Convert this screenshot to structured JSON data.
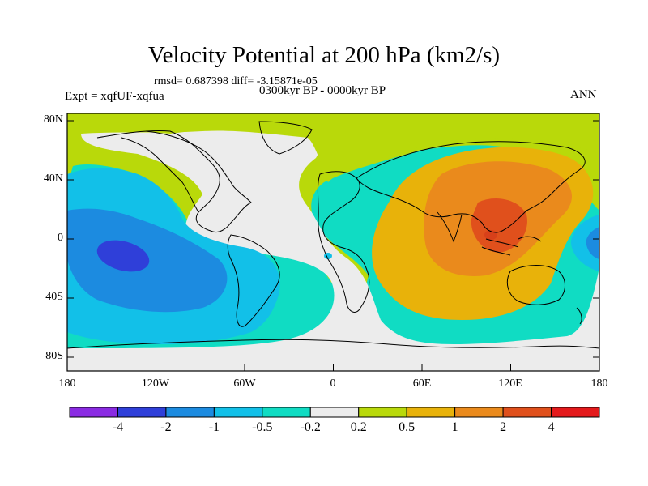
{
  "title": "Velocity Potential at 200 hPa (km2/s)",
  "stats": "rmsd= 0.687398 diff= -3.15871e-05",
  "experiment": "Expt = xqfUF-xqfua",
  "period": "0300kyr BP - 0000kyr BP",
  "season": "ANN",
  "lat_labels": [
    "80N",
    "40N",
    "0",
    "40S",
    "80S"
  ],
  "lon_labels": [
    "180",
    "120W",
    "60W",
    "0",
    "60E",
    "120E",
    "180"
  ],
  "colorbar": {
    "labels": [
      "-4",
      "-2",
      "-1",
      "-0.5",
      "-0.2",
      "0.2",
      "0.5",
      "1",
      "2",
      "4"
    ],
    "colors": [
      "#8a2be2",
      "#2f3fd9",
      "#1c8be0",
      "#12c0e8",
      "#10dcc3",
      "#ececec",
      "#b9d90a",
      "#e8b20a",
      "#ea8a1c",
      "#e0501c",
      "#e41a1c"
    ]
  }
}
